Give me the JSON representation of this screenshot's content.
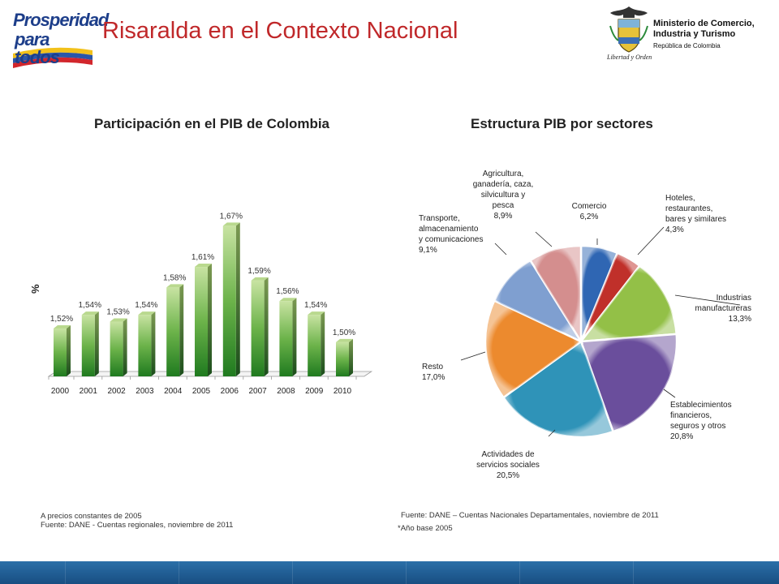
{
  "header": {
    "title": "Risaralda en el Contexto Nacional",
    "logo_line1": "Prosperidad",
    "logo_line2": "para todos",
    "ministry_line1": "Ministerio de Comercio,",
    "ministry_line2": "Industria y Turismo",
    "ministry_line3": "República de Colombia",
    "crest_motto": "Libertad y Orden"
  },
  "colors": {
    "title_red": "#c0282a",
    "bar_green": "#4a9a2a",
    "footer_blue": "#1f5e96"
  },
  "chart_data": [
    {
      "type": "bar",
      "title": "Participación en el PIB de Colombia",
      "ylabel": "%",
      "categories": [
        "2000",
        "2001",
        "2002",
        "2003",
        "2004",
        "2005",
        "2006",
        "2007",
        "2008",
        "2009",
        "2010"
      ],
      "values": [
        1.52,
        1.54,
        1.53,
        1.54,
        1.58,
        1.61,
        1.67,
        1.59,
        1.56,
        1.54,
        1.5
      ],
      "value_labels": [
        "1,52%",
        "1,54%",
        "1,53%",
        "1,54%",
        "1,58%",
        "1,61%",
        "1,67%",
        "1,59%",
        "1,56%",
        "1,54%",
        "1,50%"
      ],
      "ylim": [
        1.45,
        1.68
      ],
      "grid": false
    },
    {
      "type": "pie",
      "title": "Estructura PIB por sectores",
      "slices": [
        {
          "lines": [
            "Comercio",
            "6,2%"
          ],
          "value": 6.2,
          "color": "#2f66b3"
        },
        {
          "lines": [
            "Hoteles,",
            "restaurantes,",
            "bares y similares",
            "4,3%"
          ],
          "value": 4.3,
          "color": "#c0302a"
        },
        {
          "lines": [
            "Industrias",
            "manufactureras",
            "13,3%"
          ],
          "value": 13.3,
          "color": "#93c047"
        },
        {
          "lines": [
            "Establecimientos",
            "financieros,",
            "seguros y otros",
            "20,8%"
          ],
          "value": 20.8,
          "color": "#6a4e9c"
        },
        {
          "lines": [
            "Actividades de",
            "servicios sociales",
            "20,5%"
          ],
          "value": 20.5,
          "color": "#2f93b8"
        },
        {
          "lines": [
            "Resto",
            "17,0%"
          ],
          "value": 17.0,
          "color": "#ec8a2e"
        },
        {
          "lines": [
            "Transporte,",
            "almacenamiento",
            "y comunicaciones",
            "9,1%"
          ],
          "value": 9.1,
          "color": "#7f9fd0"
        },
        {
          "lines": [
            "Agricultura,",
            "ganadería, caza,",
            "silvicultura y",
            "pesca",
            "8,9%"
          ],
          "value": 8.9,
          "color": "#d48e8e"
        }
      ]
    }
  ],
  "notes": {
    "left_line1": "A precios constantes de 2005",
    "left_line2": "Fuente: DANE - Cuentas regionales, noviembre de 2011",
    "right_line1": "Fuente: DANE – Cuentas Nacionales Departamentales, noviembre de 2011",
    "right_line2": "*Año base 2005"
  }
}
